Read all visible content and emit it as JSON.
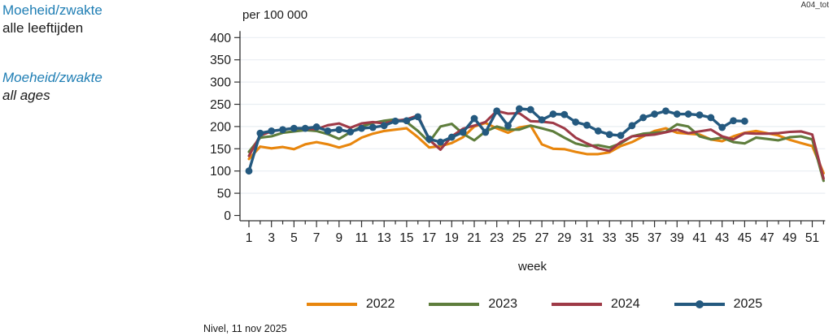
{
  "header": {
    "title_nl": "Moeheid/zwakte",
    "subtitle_nl": "alle leeftijden",
    "title_en": "Moeheid/zwakte",
    "subtitle_en": "all ages",
    "code": "A04_tot"
  },
  "footer": {
    "source": "Nivel, 11 nov 2025"
  },
  "colors": {
    "accent_blue": "#1F7EB4",
    "grid": "#E9EEF2",
    "axis": "#303030",
    "series_2022": "#E8860D",
    "series_2023": "#5E7D3C",
    "series_2024": "#9E3A47",
    "series_2025": "#24597F"
  },
  "chart_data": {
    "type": "line",
    "title": "",
    "ylabel": "per 100 000",
    "xlabel": "week",
    "ylim": [
      0,
      400
    ],
    "yticks": [
      0,
      50,
      100,
      150,
      200,
      250,
      300,
      350,
      400
    ],
    "xticks": [
      1,
      3,
      5,
      7,
      9,
      11,
      13,
      15,
      17,
      19,
      21,
      23,
      25,
      27,
      29,
      31,
      33,
      35,
      37,
      39,
      41,
      43,
      45,
      47,
      49,
      51
    ],
    "x_range": [
      1,
      52
    ],
    "grid": true,
    "legend_position": "bottom",
    "series": [
      {
        "name": "2022",
        "color": "#E8860D",
        "marker": false,
        "values": [
          127,
          155,
          151,
          154,
          149,
          160,
          165,
          160,
          153,
          160,
          175,
          184,
          190,
          193,
          196,
          176,
          153,
          156,
          163,
          176,
          200,
          208,
          196,
          186,
          198,
          202,
          160,
          150,
          149,
          143,
          138,
          138,
          142,
          156,
          165,
          178,
          190,
          196,
          186,
          184,
          182,
          171,
          167,
          178,
          186,
          190,
          185,
          180,
          170,
          163,
          156,
          95
        ]
      },
      {
        "name": "2023",
        "color": "#5E7D3C",
        "marker": false,
        "values": [
          143,
          175,
          178,
          186,
          189,
          192,
          190,
          183,
          172,
          187,
          200,
          208,
          213,
          216,
          210,
          190,
          165,
          200,
          206,
          184,
          169,
          189,
          200,
          193,
          193,
          202,
          196,
          189,
          175,
          162,
          156,
          158,
          153,
          162,
          178,
          184,
          186,
          188,
          205,
          200,
          178,
          171,
          175,
          165,
          162,
          175,
          172,
          169,
          176,
          178,
          171,
          78
        ]
      },
      {
        "name": "2024",
        "color": "#9E3A47",
        "marker": false,
        "values": [
          134,
          180,
          189,
          193,
          196,
          195,
          194,
          203,
          207,
          197,
          207,
          210,
          207,
          213,
          216,
          225,
          170,
          148,
          178,
          195,
          202,
          210,
          235,
          229,
          230,
          212,
          211,
          208,
          196,
          175,
          162,
          151,
          145,
          165,
          178,
          180,
          182,
          187,
          193,
          185,
          189,
          193,
          178,
          171,
          185,
          184,
          184,
          185,
          188,
          189,
          182,
          83
        ]
      },
      {
        "name": "2025",
        "color": "#24597F",
        "marker": true,
        "values": [
          100,
          185,
          190,
          193,
          196,
          196,
          199,
          190,
          193,
          188,
          196,
          198,
          202,
          212,
          213,
          222,
          172,
          165,
          176,
          187,
          218,
          187,
          235,
          202,
          240,
          238,
          215,
          228,
          227,
          210,
          203,
          190,
          182,
          180,
          202,
          220,
          228,
          235,
          228,
          228,
          226,
          220,
          198,
          213,
          212
        ]
      }
    ]
  }
}
